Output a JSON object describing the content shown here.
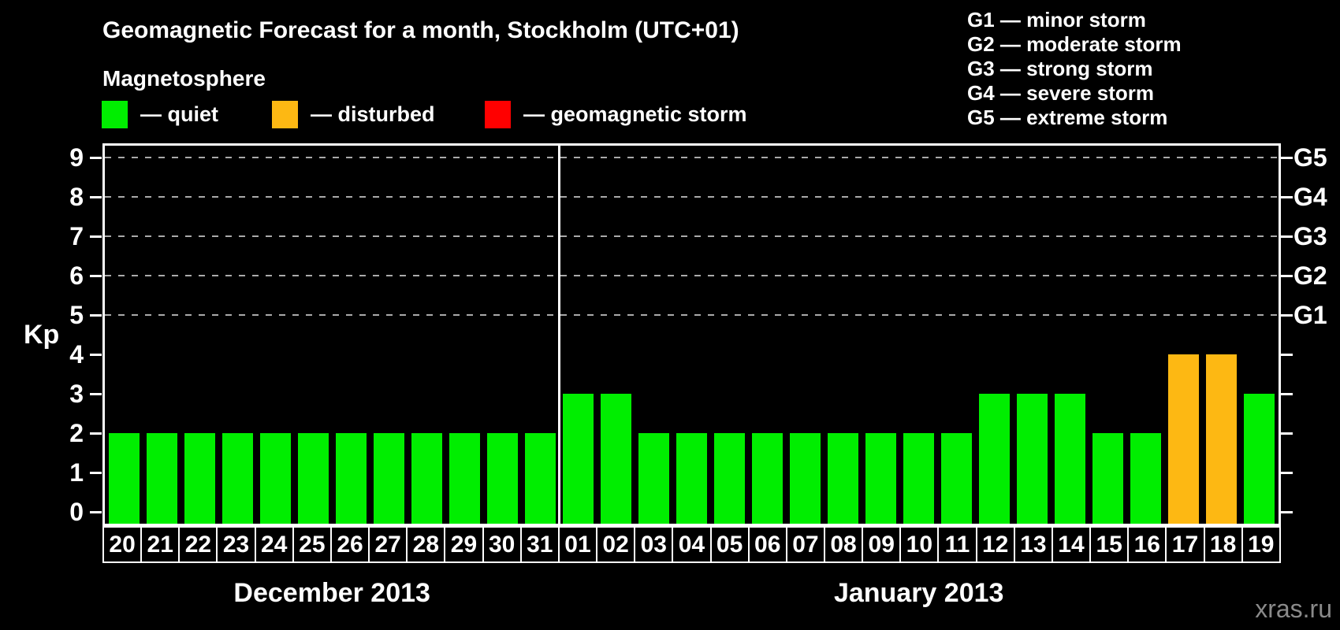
{
  "header": {
    "title": "Geomagnetic Forecast for a month, Stockholm (UTC+01)",
    "subtitle": "Magnetosphere",
    "watermark": "xras.ru"
  },
  "legend": {
    "items": [
      {
        "name": "quiet",
        "label": "— quiet",
        "color": "#00ee00"
      },
      {
        "name": "disturbed",
        "label": "— disturbed",
        "color": "#fdb813"
      },
      {
        "name": "storm",
        "label": "— geomagnetic storm",
        "color": "#ff0000"
      }
    ]
  },
  "storm_scale_legend": {
    "items": [
      "G1 — minor storm",
      "G2 — moderate storm",
      "G3 — strong storm",
      "G4 — severe storm",
      "G5 — extreme storm"
    ]
  },
  "chart_data": {
    "type": "bar",
    "title": "Geomagnetic Forecast for a month, Stockholm (UTC+01)",
    "ylabel": "Kp",
    "ylim": [
      0,
      9
    ],
    "y_ticks": [
      0,
      1,
      2,
      3,
      4,
      5,
      6,
      7,
      8,
      9
    ],
    "dashed_gridlines_at_kp": [
      5,
      6,
      7,
      8,
      9
    ],
    "right_axis_labels": [
      {
        "text": "G1",
        "kp": 5
      },
      {
        "text": "G2",
        "kp": 6
      },
      {
        "text": "G3",
        "kp": 7
      },
      {
        "text": "G4",
        "kp": 8
      },
      {
        "text": "G5",
        "kp": 9
      }
    ],
    "status_colors": {
      "quiet": "#00ee00",
      "disturbed": "#fdb813",
      "storm": "#ff0000"
    },
    "groups": [
      {
        "month_label": "December 2013",
        "days": [
          "20",
          "21",
          "22",
          "23",
          "24",
          "25",
          "26",
          "27",
          "28",
          "29",
          "30",
          "31"
        ],
        "values": [
          2,
          2,
          2,
          2,
          2,
          2,
          2,
          2,
          2,
          2,
          2,
          2
        ],
        "status": [
          "quiet",
          "quiet",
          "quiet",
          "quiet",
          "quiet",
          "quiet",
          "quiet",
          "quiet",
          "quiet",
          "quiet",
          "quiet",
          "quiet"
        ]
      },
      {
        "month_label": "January 2013",
        "days": [
          "01",
          "02",
          "03",
          "04",
          "05",
          "06",
          "07",
          "08",
          "09",
          "10",
          "11",
          "12",
          "13",
          "14",
          "15",
          "16",
          "17",
          "18",
          "19"
        ],
        "values": [
          3,
          3,
          2,
          2,
          2,
          2,
          2,
          2,
          2,
          2,
          2,
          3,
          3,
          3,
          2,
          2,
          4,
          4,
          3
        ],
        "status": [
          "quiet",
          "quiet",
          "quiet",
          "quiet",
          "quiet",
          "quiet",
          "quiet",
          "quiet",
          "quiet",
          "quiet",
          "quiet",
          "quiet",
          "quiet",
          "quiet",
          "quiet",
          "quiet",
          "disturbed",
          "disturbed",
          "quiet"
        ]
      }
    ]
  }
}
